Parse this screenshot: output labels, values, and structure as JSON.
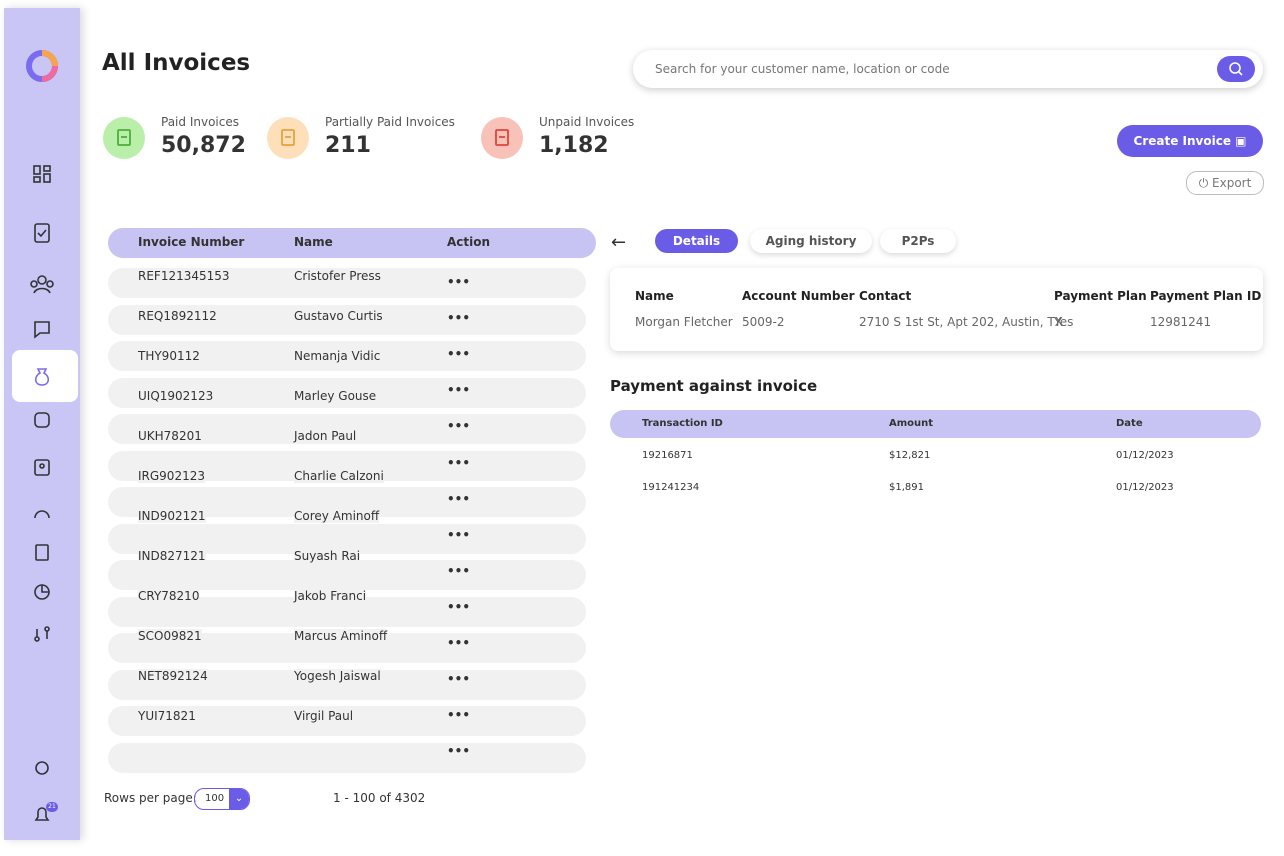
{
  "header": {
    "title": "All Invoices",
    "search_placeholder": "Search for your customer name, location or code"
  },
  "stats": [
    {
      "label": "Paid Invoices",
      "value": "50,872"
    },
    {
      "label": "Partially Paid Invoices",
      "value": "211"
    },
    {
      "label": "Unpaid Invoices",
      "value": "1,182"
    }
  ],
  "actions": {
    "create": "Create Invoice",
    "export": "Export"
  },
  "notification_badge": "21",
  "table": {
    "columns": [
      "Invoice Number",
      "Name",
      "Action"
    ],
    "action_label": "•••",
    "rows": [
      [
        "REF121345153",
        "Cristofer Press"
      ],
      [
        "REQ1892112",
        "Gustavo Curtis"
      ],
      [
        "THY90112",
        "Nemanja Vidic"
      ],
      [
        "UIQ1902123",
        "Marley Gouse"
      ],
      [
        "UKH78201",
        "Jadon Paul"
      ],
      [
        "IRG902123",
        "Charlie Calzoni"
      ],
      [
        "IND902121",
        "Corey Aminoff"
      ],
      [
        "IND827121",
        "Suyash Rai"
      ],
      [
        "CRY78210",
        "Jakob Franci"
      ],
      [
        "SCO09821",
        "Marcus Aminoff"
      ],
      [
        "NET892124",
        "Yogesh Jaiswal"
      ],
      [
        "YUI71821",
        "Virgil Paul"
      ]
    ]
  },
  "pagination": {
    "rows_label": "Rows per page:",
    "rows_value": "100",
    "range": "1 - 100 of 4302"
  },
  "tabs": [
    "Details",
    "Aging history",
    "P2Ps"
  ],
  "details": {
    "columns": [
      "Name",
      "Account Number",
      "Contact",
      "Payment Plan",
      "Payment Plan ID"
    ],
    "values": [
      "Morgan Fletcher",
      "5009-2",
      "2710 S 1st St, Apt 202, Austin, TX",
      "Yes",
      "12981241"
    ]
  },
  "payments": {
    "title": "Payment against invoice",
    "columns": [
      "Transaction ID",
      "Amount",
      "Date"
    ],
    "rows": [
      [
        "19216871",
        "$12,821",
        "01/12/2023"
      ],
      [
        "191241234",
        "$1,891",
        "01/12/2023"
      ]
    ]
  }
}
